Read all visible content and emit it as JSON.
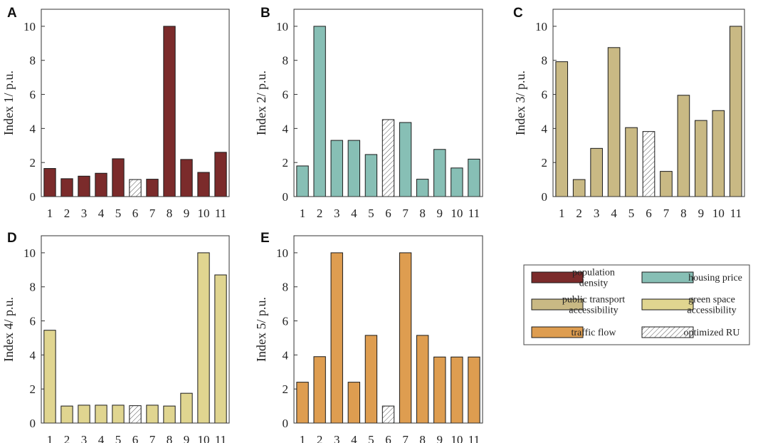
{
  "chart_data": [
    {
      "panel": "A",
      "type": "bar",
      "ylabel": "Index 1/ p.u.",
      "color": "#7b2b2b",
      "categories": [
        "1",
        "2",
        "3",
        "4",
        "5",
        "6",
        "7",
        "8",
        "9",
        "10",
        "11"
      ],
      "values": [
        1.65,
        1.05,
        1.2,
        1.37,
        2.22,
        1.0,
        1.02,
        10.0,
        2.18,
        1.42,
        2.6
      ],
      "optimized_index": 5,
      "ylim": [
        0,
        11
      ],
      "yticks": [
        "0",
        "2",
        "4",
        "6",
        "8",
        "10"
      ]
    },
    {
      "panel": "B",
      "type": "bar",
      "ylabel": "Index 2/ p.u.",
      "color": "#87bfb5",
      "categories": [
        "1",
        "2",
        "3",
        "4",
        "5",
        "6",
        "7",
        "8",
        "9",
        "10",
        "11"
      ],
      "values": [
        1.8,
        10.0,
        3.3,
        3.3,
        2.47,
        4.52,
        4.35,
        1.02,
        2.77,
        1.68,
        2.2
      ],
      "optimized_index": 5,
      "ylim": [
        0,
        11
      ],
      "yticks": [
        "0",
        "2",
        "4",
        "6",
        "8",
        "10"
      ]
    },
    {
      "panel": "C",
      "type": "bar",
      "ylabel": "Index 3/ p.u.",
      "color": "#c9b984",
      "categories": [
        "1",
        "2",
        "3",
        "4",
        "5",
        "6",
        "7",
        "8",
        "9",
        "10",
        "11"
      ],
      "values": [
        7.92,
        1.0,
        2.83,
        8.75,
        4.05,
        3.82,
        1.48,
        5.95,
        4.47,
        5.05,
        10.0
      ],
      "optimized_index": 5,
      "ylim": [
        0,
        11
      ],
      "yticks": [
        "0",
        "2",
        "4",
        "6",
        "8",
        "10"
      ]
    },
    {
      "panel": "D",
      "type": "bar",
      "ylabel": "Index 4/ p.u.",
      "color": "#e0d590",
      "categories": [
        "1",
        "2",
        "3",
        "4",
        "5",
        "6",
        "7",
        "8",
        "9",
        "10",
        "11"
      ],
      "values": [
        5.45,
        1.0,
        1.05,
        1.05,
        1.05,
        1.02,
        1.05,
        1.0,
        1.75,
        10.0,
        8.7
      ],
      "optimized_index": 5,
      "ylim": [
        0,
        11
      ],
      "yticks": [
        "0",
        "2",
        "4",
        "6",
        "8",
        "10"
      ]
    },
    {
      "panel": "E",
      "type": "bar",
      "ylabel": "Index 5/ p.u.",
      "color": "#de9d50",
      "categories": [
        "1",
        "2",
        "3",
        "4",
        "5",
        "6",
        "7",
        "8",
        "9",
        "10",
        "11"
      ],
      "values": [
        2.4,
        3.9,
        10.0,
        2.4,
        5.15,
        1.0,
        10.0,
        5.15,
        3.88,
        3.88,
        3.88
      ],
      "optimized_index": 5,
      "ylim": [
        0,
        11
      ],
      "yticks": [
        "0",
        "2",
        "4",
        "6",
        "8",
        "10"
      ]
    }
  ],
  "legend": [
    {
      "label": [
        "population",
        "density"
      ],
      "color": "#7b2b2b",
      "hatch": false
    },
    {
      "label": [
        "housing price"
      ],
      "color": "#87bfb5",
      "hatch": false
    },
    {
      "label": [
        "public transport",
        "accessibility"
      ],
      "color": "#c9b984",
      "hatch": false
    },
    {
      "label": [
        "green space",
        "accessibility"
      ],
      "color": "#e0d590",
      "hatch": false
    },
    {
      "label": [
        "traffic flow"
      ],
      "color": "#de9d50",
      "hatch": false
    },
    {
      "label": [
        "optimized RU"
      ],
      "color": "#ffffff",
      "hatch": true
    }
  ]
}
